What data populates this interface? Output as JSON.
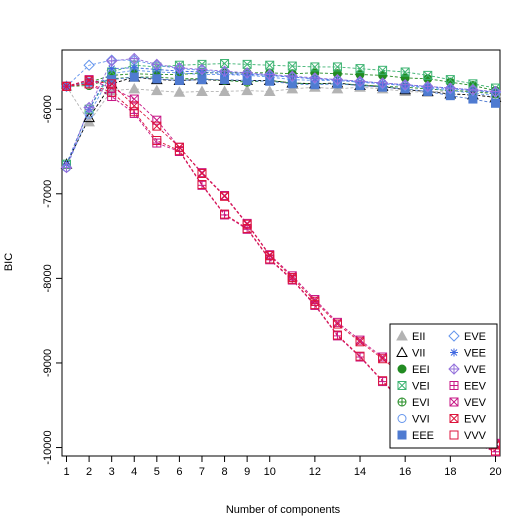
{
  "chart_data": {
    "type": "line",
    "xlabel": "Number of components",
    "ylabel": "BIC",
    "xlim": [
      0.8,
      20.2
    ],
    "ylim": [
      -10100,
      -5300
    ],
    "x": [
      1,
      2,
      3,
      4,
      5,
      6,
      7,
      8,
      9,
      10,
      11,
      12,
      13,
      14,
      15,
      16,
      17,
      18,
      19,
      20
    ],
    "x_ticks": [
      1,
      2,
      3,
      4,
      5,
      6,
      7,
      8,
      9,
      10,
      12,
      14,
      16,
      18,
      20
    ],
    "y_ticks": [
      -10000,
      -9000,
      -8000,
      -7000,
      -6000
    ],
    "legend_position": "bottom-right",
    "series": [
      {
        "name": "EII",
        "color": "#b3b3b3",
        "marker": "tri-fill",
        "values": [
          -5730,
          -6150,
          -5780,
          -5760,
          -5780,
          -5800,
          -5790,
          -5790,
          -5780,
          -5790,
          -5760,
          -5740,
          -5760,
          -5740,
          -5760,
          -5790,
          -5800,
          -5780,
          -5790,
          -5810
        ]
      },
      {
        "name": "VII",
        "color": "#000000",
        "marker": "tri-open",
        "values": [
          -6650,
          -6100,
          -5700,
          -5620,
          -5650,
          -5660,
          -5650,
          -5660,
          -5660,
          -5660,
          -5690,
          -5700,
          -5690,
          -5720,
          -5730,
          -5770,
          -5790,
          -5820,
          -5830,
          -5860
        ]
      },
      {
        "name": "EEI",
        "color": "#228b22",
        "marker": "dot",
        "values": [
          -5730,
          -5680,
          -5600,
          -5580,
          -5590,
          -5590,
          -5570,
          -5570,
          -5570,
          -5570,
          -5580,
          -5570,
          -5580,
          -5590,
          -5600,
          -5630,
          -5640,
          -5680,
          -5720,
          -5780
        ]
      },
      {
        "name": "VEI",
        "color": "#3cb371",
        "marker": "box-x",
        "values": [
          -6650,
          -6000,
          -5560,
          -5480,
          -5500,
          -5480,
          -5470,
          -5460,
          -5470,
          -5480,
          -5490,
          -5500,
          -5500,
          -5520,
          -5540,
          -5560,
          -5600,
          -5650,
          -5700,
          -5750
        ]
      },
      {
        "name": "EVI",
        "color": "#228b22",
        "marker": "circle-plus",
        "values": [
          -5730,
          -5720,
          -5640,
          -5620,
          -5620,
          -5640,
          -5640,
          -5660,
          -5680,
          -5660,
          -5690,
          -5700,
          -5700,
          -5710,
          -5730,
          -5740,
          -5760,
          -5780,
          -5790,
          -5820
        ]
      },
      {
        "name": "VVI",
        "color": "#6495ed",
        "marker": "circle",
        "values": [
          -6690,
          -6060,
          -5580,
          -5540,
          -5560,
          -5570,
          -5590,
          -5590,
          -5600,
          -5620,
          -5650,
          -5660,
          -5660,
          -5680,
          -5700,
          -5720,
          -5750,
          -5780,
          -5810,
          -5840
        ]
      },
      {
        "name": "EEE",
        "color": "#4f7bd1",
        "marker": "square",
        "values": [
          -5730,
          -5680,
          -5650,
          -5620,
          -5640,
          -5660,
          -5650,
          -5650,
          -5660,
          -5670,
          -5700,
          -5710,
          -5700,
          -5720,
          -5740,
          -5760,
          -5790,
          -5840,
          -5880,
          -5930
        ]
      },
      {
        "name": "EVE",
        "color": "#6495ed",
        "marker": "diamond",
        "values": [
          -5730,
          -5480,
          -5420,
          -5420,
          -5480,
          -5520,
          -5540,
          -5560,
          -5580,
          -5600,
          -5620,
          -5640,
          -5660,
          -5680,
          -5700,
          -5720,
          -5740,
          -5760,
          -5780,
          -5800
        ]
      },
      {
        "name": "VEE",
        "color": "#4169e1",
        "marker": "star",
        "values": [
          -6650,
          -6000,
          -5520,
          -5510,
          -5530,
          -5550,
          -5560,
          -5580,
          -5590,
          -5600,
          -5620,
          -5640,
          -5650,
          -5670,
          -5690,
          -5710,
          -5730,
          -5750,
          -5770,
          -5800
        ]
      },
      {
        "name": "VVE",
        "color": "#9370db",
        "marker": "diamond-plus",
        "values": [
          -6690,
          -5980,
          -5430,
          -5400,
          -5470,
          -5510,
          -5530,
          -5550,
          -5570,
          -5590,
          -5610,
          -5630,
          -5650,
          -5670,
          -5690,
          -5710,
          -5730,
          -5750,
          -5770,
          -5790
        ]
      },
      {
        "name": "EEV",
        "color": "#c71585",
        "marker": "box-plus",
        "values": [
          -5730,
          -5700,
          -5850,
          -6050,
          -6400,
          -6500,
          -6900,
          -7250,
          -7420,
          -7780,
          -8020,
          -8320,
          -8680,
          -8930,
          -9220,
          -9500,
          -9700,
          -9850,
          -9950,
          -10050
        ]
      },
      {
        "name": "VEV",
        "color": "#c71585",
        "marker": "box-x",
        "values": [
          -5730,
          -5650,
          -5750,
          -5880,
          -6130,
          -6450,
          -6750,
          -7020,
          -7350,
          -7720,
          -7970,
          -8250,
          -8520,
          -8730,
          -8930,
          -9150,
          -9350,
          -9550,
          -9750,
          -9950
        ]
      },
      {
        "name": "EVV",
        "color": "#dc143c",
        "marker": "box-x-red",
        "values": [
          -5730,
          -5660,
          -5700,
          -5960,
          -6200,
          -6450,
          -6760,
          -7030,
          -7360,
          -7730,
          -7990,
          -8270,
          -8540,
          -8750,
          -8950,
          -9170,
          -9370,
          -9570,
          -9770,
          -9970
        ]
      },
      {
        "name": "VVV",
        "color": "#dc143c",
        "marker": "square-open",
        "values": [
          -5730,
          -5700,
          -5800,
          -6030,
          -6370,
          -6490,
          -6890,
          -7240,
          -7410,
          -7770,
          -8010,
          -8310,
          -8670,
          -8920,
          -9210,
          -9490,
          -9690,
          -9840,
          -9940,
          -10040
        ]
      }
    ]
  }
}
